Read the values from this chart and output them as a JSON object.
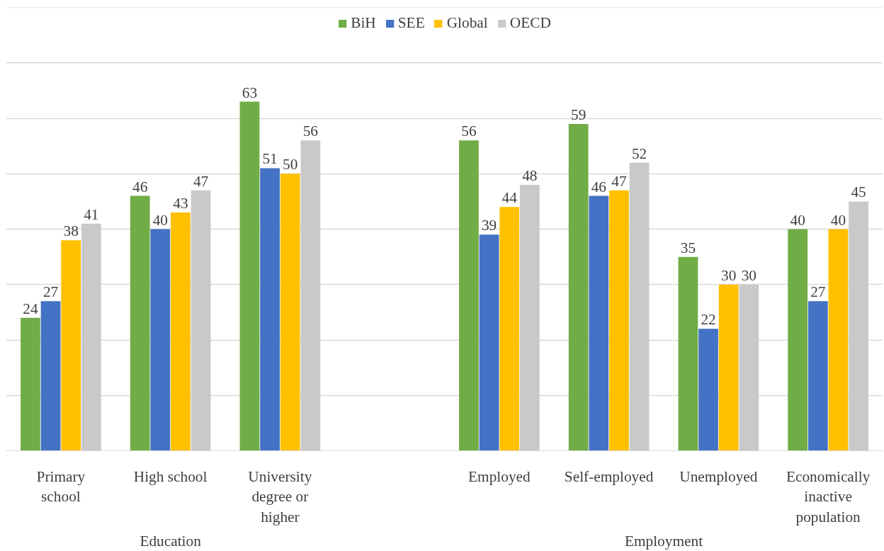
{
  "chart_data": {
    "type": "bar",
    "categories": [
      "Primary school",
      "High school",
      "University degree or higher",
      null,
      "Employed",
      "Self-employed",
      "Unemployed",
      "Economically inactive population"
    ],
    "series": [
      {
        "name": "BiH",
        "color": "#70ad47",
        "values": [
          24,
          46,
          63,
          null,
          56,
          59,
          35,
          40
        ]
      },
      {
        "name": "SEE",
        "color": "#4472c4",
        "values": [
          27,
          40,
          51,
          null,
          39,
          46,
          22,
          27
        ]
      },
      {
        "name": "Global",
        "color": "#ffc000",
        "values": [
          38,
          43,
          50,
          null,
          44,
          47,
          30,
          40
        ]
      },
      {
        "name": "OECD",
        "color": "#c9c9c9",
        "values": [
          41,
          47,
          56,
          null,
          48,
          52,
          30,
          45
        ]
      }
    ],
    "annotations": [
      "Education",
      "Employment"
    ],
    "tick_labels": "x",
    "grid": "y",
    "legend": "top",
    "data_labels": true
  }
}
